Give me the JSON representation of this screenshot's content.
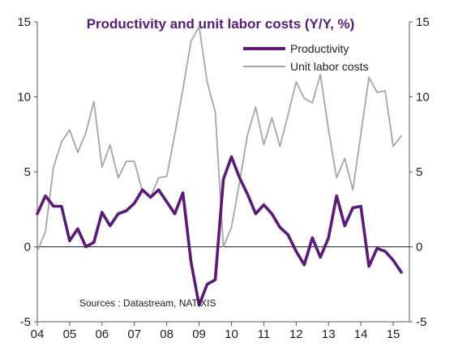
{
  "chart_data": {
    "type": "line",
    "title": "Productivity and unit labor costs (Y/Y, %)",
    "source": "Sources : Datastream, NATIXIS",
    "x_tick_labels": [
      "04",
      "05",
      "06",
      "07",
      "08",
      "09",
      "10",
      "11",
      "12",
      "13",
      "14",
      "15"
    ],
    "x_range": [
      2004.0,
      2015.5
    ],
    "y_left": {
      "ticks": [
        "-5",
        "0",
        "5",
        "10",
        "15"
      ],
      "ylim": [
        -5,
        15
      ]
    },
    "y_right": {
      "ticks": [
        "-5",
        "0",
        "5",
        "10",
        "15"
      ],
      "ylim": [
        -5,
        15
      ]
    },
    "grid": false,
    "zero_line": true,
    "legend_position": "top-right",
    "series": [
      {
        "name": "Productivity",
        "color": "#5b1a7a",
        "x": [
          2004.0,
          2004.25,
          2004.5,
          2004.75,
          2005.0,
          2005.25,
          2005.5,
          2005.75,
          2006.0,
          2006.25,
          2006.5,
          2006.75,
          2007.0,
          2007.25,
          2007.5,
          2007.75,
          2008.0,
          2008.25,
          2008.5,
          2008.75,
          2009.0,
          2009.25,
          2009.5,
          2009.75,
          2010.0,
          2010.25,
          2010.5,
          2010.75,
          2011.0,
          2011.25,
          2011.5,
          2011.75,
          2012.0,
          2012.25,
          2012.5,
          2012.75,
          2013.0,
          2013.25,
          2013.5,
          2013.75,
          2014.0,
          2014.25,
          2014.5,
          2014.75,
          2015.0,
          2015.25
        ],
        "values": [
          2.2,
          3.4,
          2.7,
          2.7,
          0.4,
          1.2,
          0.0,
          0.3,
          2.3,
          1.4,
          2.2,
          2.4,
          2.9,
          3.8,
          3.3,
          3.8,
          3.0,
          2.2,
          3.6,
          -1.0,
          -3.9,
          -2.5,
          -2.2,
          4.5,
          6.0,
          4.6,
          3.5,
          2.2,
          2.8,
          2.2,
          1.3,
          0.8,
          -0.3,
          -1.2,
          0.6,
          -0.7,
          0.6,
          3.4,
          1.4,
          2.6,
          2.7,
          -1.3,
          -0.1,
          -0.3,
          -0.9,
          -1.7
        ]
      },
      {
        "name": "Unit labor costs",
        "color": "#a6a6a6",
        "x": [
          2004.0,
          2004.25,
          2004.5,
          2004.75,
          2005.0,
          2005.25,
          2005.5,
          2005.75,
          2006.0,
          2006.25,
          2006.5,
          2006.75,
          2007.0,
          2007.25,
          2007.5,
          2007.75,
          2008.0,
          2008.25,
          2008.5,
          2008.75,
          2009.0,
          2009.25,
          2009.5,
          2009.75,
          2010.0,
          2010.25,
          2010.5,
          2010.75,
          2011.0,
          2011.25,
          2011.5,
          2011.75,
          2012.0,
          2012.25,
          2012.5,
          2012.75,
          2013.0,
          2013.25,
          2013.5,
          2013.75,
          2014.0,
          2014.25,
          2014.5,
          2014.75,
          2015.0,
          2015.25
        ],
        "values": [
          -0.3,
          1.0,
          5.3,
          7.0,
          7.8,
          6.3,
          7.6,
          9.7,
          5.3,
          6.8,
          4.6,
          5.7,
          5.7,
          3.7,
          3.3,
          4.6,
          4.7,
          7.5,
          10.5,
          13.7,
          14.7,
          11.0,
          9.0,
          0.0,
          1.3,
          4.3,
          7.5,
          9.3,
          6.8,
          8.6,
          6.7,
          8.8,
          11.0,
          9.9,
          9.6,
          11.5,
          7.8,
          4.6,
          5.9,
          3.8,
          7.5,
          11.3,
          10.3,
          10.4,
          6.7,
          7.4
        ]
      }
    ]
  }
}
